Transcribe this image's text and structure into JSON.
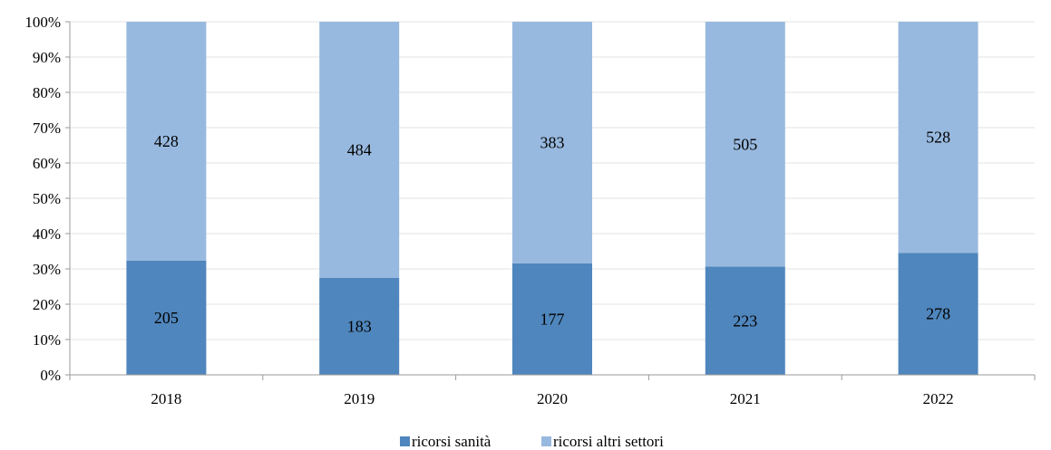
{
  "chart_data": {
    "type": "bar",
    "stacked": true,
    "normalized": true,
    "categories": [
      "2018",
      "2019",
      "2020",
      "2021",
      "2022"
    ],
    "series": [
      {
        "name": "ricorsi sanità",
        "values": [
          205,
          183,
          177,
          223,
          278
        ],
        "color": "#4f86bd"
      },
      {
        "name": "ricorsi altri settori",
        "values": [
          428,
          484,
          383,
          505,
          528
        ],
        "color": "#98b9df"
      }
    ],
    "yticks": [
      "0%",
      "10%",
      "20%",
      "30%",
      "40%",
      "50%",
      "60%",
      "70%",
      "80%",
      "90%",
      "100%"
    ],
    "ylim": [
      0,
      100
    ],
    "grid": true,
    "legend": "bottom-center"
  }
}
